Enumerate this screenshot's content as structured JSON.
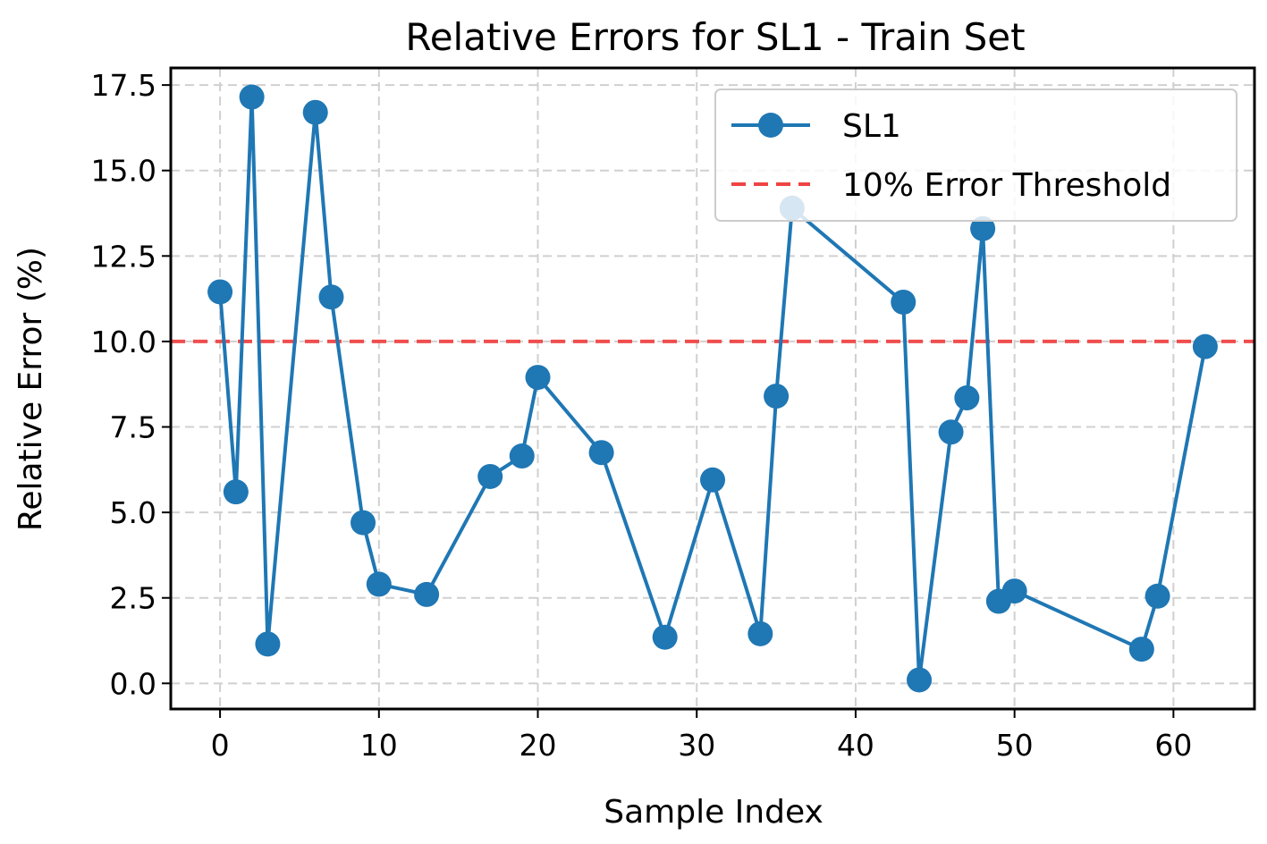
{
  "chart_data": {
    "type": "line",
    "title": "Relative Errors for SL1 - Train Set",
    "xlabel": "Sample Index",
    "ylabel": "Relative Error (%)",
    "xlim": [
      -3.1,
      65.1
    ],
    "ylim": [
      -0.75,
      18.0
    ],
    "xticks": [
      0,
      10,
      20,
      30,
      40,
      50,
      60
    ],
    "yticks": [
      0.0,
      2.5,
      5.0,
      7.5,
      10.0,
      12.5,
      15.0,
      17.5
    ],
    "grid": true,
    "legend_position": "top-right",
    "series": [
      {
        "name": "SL1",
        "style": "line-with-markers",
        "color": "#1f77b4",
        "x": [
          0,
          1,
          2,
          3,
          6,
          7,
          9,
          10,
          13,
          17,
          19,
          20,
          24,
          28,
          31,
          34,
          35,
          36,
          43,
          44,
          46,
          47,
          48,
          49,
          50,
          58,
          59,
          62
        ],
        "y": [
          11.45,
          5.6,
          17.15,
          1.15,
          16.7,
          11.3,
          4.7,
          2.9,
          2.6,
          6.05,
          6.65,
          8.95,
          6.75,
          1.35,
          5.95,
          1.45,
          8.4,
          13.9,
          11.15,
          0.1,
          7.35,
          8.35,
          13.3,
          2.4,
          2.7,
          1.0,
          2.55,
          9.85
        ]
      },
      {
        "name": "10% Error Threshold",
        "style": "dashed-horizontal",
        "color": "#ef4444",
        "y": 10.0
      }
    ]
  }
}
